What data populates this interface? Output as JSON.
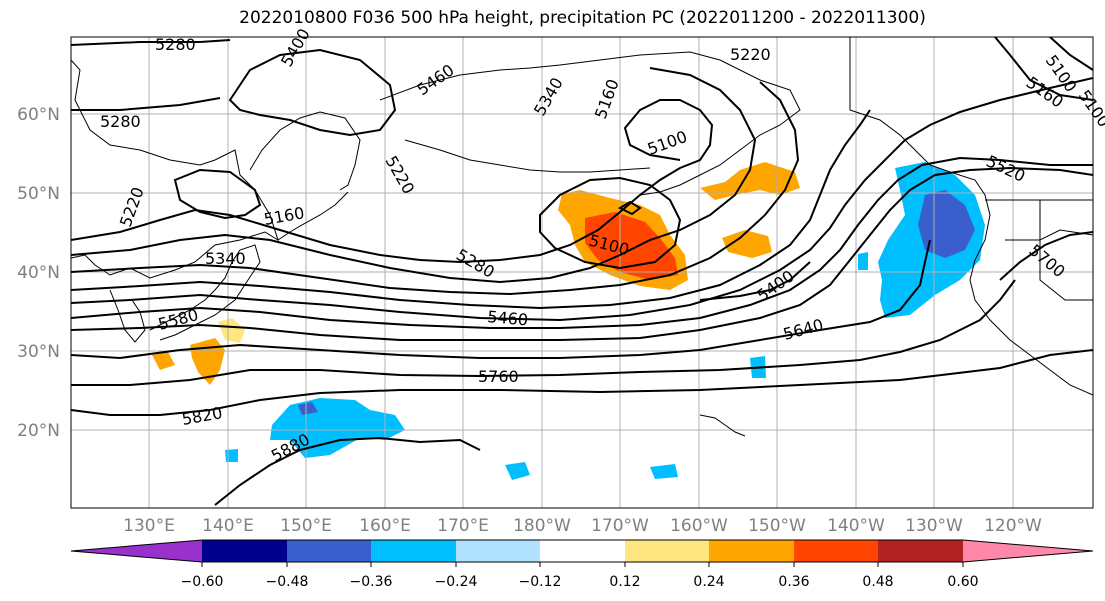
{
  "title": "2022010800 F036 500 hPa height, precipitation PC (2022011200 - 2022011300)",
  "lat_labels": [
    "60°N",
    "50°N",
    "40°N",
    "30°N",
    "20°N"
  ],
  "lon_labels": [
    "130°E",
    "140°E",
    "150°E",
    "160°E",
    "170°E",
    "180°W",
    "170°W",
    "160°W",
    "150°W",
    "140°W",
    "130°W",
    "120°W"
  ],
  "contour_labels": [
    "5280",
    "5280",
    "5460",
    "5340",
    "5220",
    "5160",
    "5100",
    "5220",
    "5160",
    "5100",
    "5280",
    "5160",
    "5220",
    "5340",
    "5100",
    "5400",
    "5460",
    "5520",
    "5580",
    "5640",
    "5700",
    "5760",
    "5820",
    "5880",
    "5400",
    "5100"
  ],
  "colorbar": {
    "tick_labels": [
      "−0.60",
      "−0.48",
      "−0.36",
      "−0.24",
      "−0.12",
      "0.12",
      "0.24",
      "0.36",
      "0.48",
      "0.60"
    ],
    "colors": [
      "#9932cc",
      "#00008b",
      "#3a5fcd",
      "#00bfff",
      "#b0e2ff",
      "#ffffff",
      "#ffe680",
      "#ffa500",
      "#ff4500",
      "#b22222",
      "#ff88aa"
    ]
  },
  "colors": {
    "contour": "#000000",
    "grid": "#b0b0b0",
    "coast": "#000000"
  }
}
